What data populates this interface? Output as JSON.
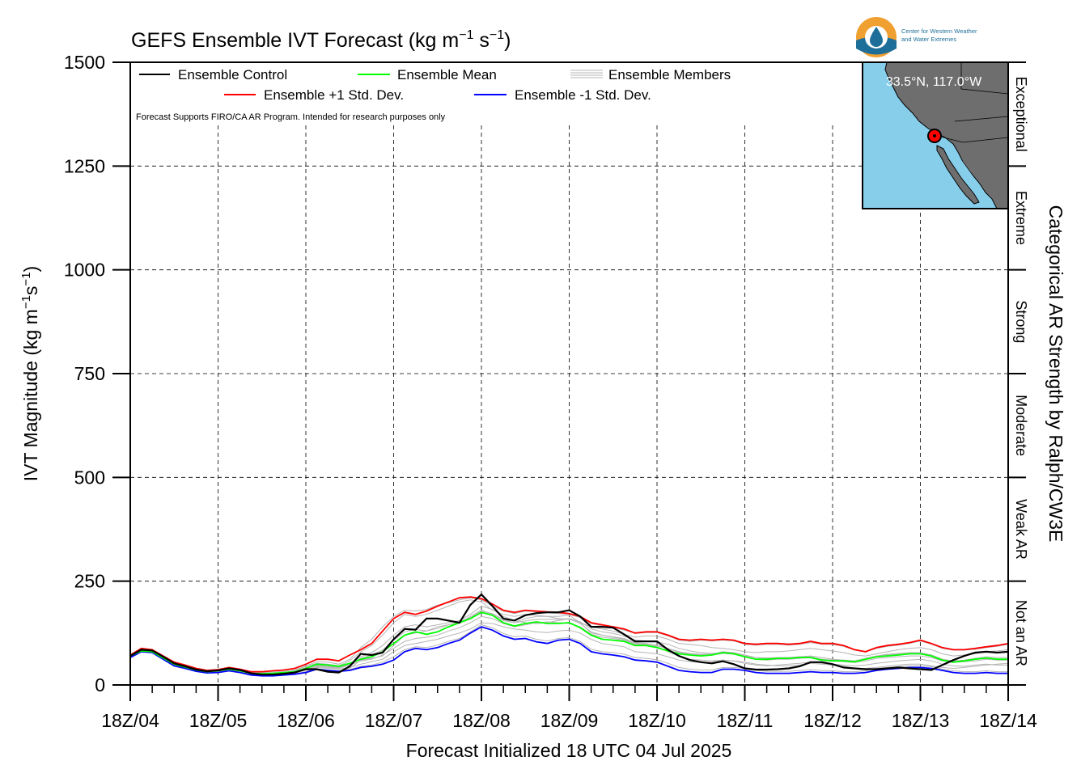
{
  "chart_data": {
    "type": "line",
    "title": "GEFS Ensemble IVT Forecast (kg m⁻¹ s⁻¹)",
    "title_parts": {
      "main": "GEFS Ensemble IVT Forecast (kg m",
      "exp1": "−1",
      "mid": " s",
      "exp2": "−1",
      "end": ")"
    },
    "ylabel_parts": {
      "main": "IVT Magnitude (kg m",
      "exp1": "−1",
      "mid": "s",
      "exp2": "−1",
      "end": ")"
    },
    "xlabel": "Forecast Initialized 18 UTC 04 Jul 2025",
    "right_label": "Categorical AR Strength by Ralph/CW3E",
    "ylim": [
      0,
      1500
    ],
    "yticks": [
      0,
      250,
      500,
      750,
      1000,
      1250,
      1500
    ],
    "ytick_labels": [
      "0",
      "250",
      "500",
      "750",
      "1000",
      "1250",
      "1500"
    ],
    "xlim": [
      0,
      10
    ],
    "xtick_labels": [
      "18Z/04",
      "18Z/05",
      "18Z/06",
      "18Z/07",
      "18Z/08",
      "18Z/09",
      "18Z/10",
      "18Z/11",
      "18Z/12",
      "18Z/13",
      "18Z/14"
    ],
    "grid": true,
    "legend_placement": "top-left",
    "categories": [
      {
        "label": "Not an AR",
        "lo": 0,
        "hi": 250
      },
      {
        "label": "Weak AR",
        "lo": 250,
        "hi": 500
      },
      {
        "label": "Moderate",
        "lo": 500,
        "hi": 750
      },
      {
        "label": "Strong",
        "lo": 750,
        "hi": 1000
      },
      {
        "label": "Extreme",
        "lo": 1000,
        "hi": 1250
      },
      {
        "label": "Exceptional",
        "lo": 1250,
        "hi": 1500
      }
    ],
    "x": [
      0,
      0.125,
      0.25,
      0.375,
      0.5,
      0.625,
      0.75,
      0.875,
      1,
      1.125,
      1.25,
      1.375,
      1.5,
      1.625,
      1.75,
      1.875,
      2,
      2.125,
      2.25,
      2.375,
      2.5,
      2.625,
      2.75,
      2.875,
      3,
      3.125,
      3.25,
      3.375,
      3.5,
      3.625,
      3.75,
      3.875,
      4,
      4.125,
      4.25,
      4.375,
      4.5,
      4.625,
      4.75,
      4.875,
      5,
      5.125,
      5.25,
      5.375,
      5.5,
      5.625,
      5.75,
      5.875,
      6,
      6.125,
      6.25,
      6.375,
      6.5,
      6.625,
      6.75,
      6.875,
      7,
      7.125,
      7.25,
      7.375,
      7.5,
      7.625,
      7.75,
      7.875,
      8,
      8.125,
      8.25,
      8.375,
      8.5,
      8.625,
      8.75,
      8.875,
      9,
      9.125,
      9.25,
      9.375,
      9.5,
      9.625,
      9.75,
      9.875,
      10
    ],
    "series": [
      {
        "name": "Ensemble Control",
        "color": "#000000",
        "values": [
          70,
          85,
          83,
          68,
          52,
          45,
          37,
          33,
          35,
          40,
          36,
          28,
          25,
          25,
          27,
          30,
          38,
          38,
          32,
          30,
          45,
          75,
          72,
          78,
          110,
          135,
          133,
          160,
          160,
          155,
          150,
          193,
          218,
          190,
          160,
          155,
          168,
          173,
          175,
          175,
          180,
          165,
          140,
          140,
          138,
          122,
          105,
          105,
          105,
          85,
          70,
          60,
          55,
          52,
          57,
          50,
          40,
          37,
          37,
          38,
          40,
          45,
          55,
          55,
          50,
          42,
          40,
          38,
          38,
          40,
          42,
          40,
          38,
          36,
          48,
          60,
          70,
          78,
          80,
          78,
          80
        ]
      },
      {
        "name": "Ensemble Mean",
        "color": "#00ff00",
        "values": [
          70,
          82,
          80,
          65,
          50,
          43,
          36,
          32,
          34,
          38,
          34,
          28,
          27,
          28,
          30,
          32,
          40,
          50,
          48,
          45,
          52,
          62,
          68,
          80,
          100,
          120,
          128,
          122,
          128,
          140,
          150,
          160,
          175,
          168,
          150,
          142,
          148,
          152,
          148,
          148,
          150,
          138,
          120,
          110,
          108,
          105,
          95,
          95,
          90,
          82,
          75,
          72,
          70,
          72,
          78,
          75,
          68,
          62,
          62,
          64,
          64,
          66,
          66,
          60,
          58,
          58,
          56,
          62,
          68,
          70,
          72,
          75,
          75,
          70,
          60,
          55,
          58,
          62,
          65,
          62,
          62
        ]
      },
      {
        "name": "Ensemble +1 Std. Dev.",
        "color": "#ff0000",
        "values": [
          72,
          88,
          85,
          70,
          55,
          48,
          40,
          35,
          37,
          42,
          38,
          32,
          32,
          34,
          36,
          40,
          50,
          62,
          62,
          58,
          72,
          85,
          100,
          130,
          160,
          175,
          170,
          178,
          190,
          200,
          210,
          212,
          208,
          195,
          180,
          175,
          180,
          178,
          176,
          175,
          172,
          165,
          150,
          145,
          140,
          135,
          125,
          128,
          128,
          120,
          110,
          108,
          110,
          108,
          110,
          108,
          100,
          98,
          100,
          100,
          98,
          100,
          105,
          100,
          100,
          95,
          85,
          80,
          90,
          95,
          98,
          102,
          108,
          100,
          90,
          85,
          85,
          88,
          92,
          95,
          100
        ]
      },
      {
        "name": "Ensemble -1 Std. Dev.",
        "color": "#0000ff",
        "values": [
          66,
          80,
          78,
          62,
          46,
          40,
          33,
          29,
          30,
          34,
          30,
          24,
          22,
          22,
          24,
          26,
          30,
          38,
          35,
          33,
          35,
          42,
          45,
          50,
          60,
          80,
          88,
          85,
          90,
          100,
          108,
          125,
          140,
          132,
          118,
          110,
          112,
          104,
          100,
          108,
          110,
          100,
          80,
          75,
          72,
          68,
          60,
          58,
          55,
          45,
          35,
          32,
          30,
          30,
          38,
          38,
          35,
          30,
          28,
          28,
          28,
          30,
          32,
          30,
          30,
          28,
          28,
          30,
          35,
          38,
          40,
          42,
          42,
          40,
          35,
          30,
          28,
          28,
          30,
          28,
          28
        ]
      }
    ],
    "members_label": "Ensemble Members",
    "member_color": "#b4b4b4",
    "members": [
      [
        70,
        84,
        82,
        67,
        51,
        44,
        36,
        32,
        34,
        39,
        35,
        27,
        24,
        24,
        26,
        29,
        36,
        36,
        31,
        29,
        40,
        60,
        64,
        70,
        95,
        120,
        125,
        130,
        140,
        145,
        150,
        165,
        180,
        170,
        155,
        150,
        160,
        165,
        165,
        165,
        168,
        150,
        125,
        120,
        115,
        110,
        100,
        98,
        92,
        80,
        70,
        62,
        60,
        58,
        60,
        58,
        55,
        50,
        48,
        46,
        46,
        48,
        52,
        50,
        48,
        45,
        40,
        40,
        42,
        45,
        48,
        50,
        50,
        46,
        42,
        40,
        42,
        45,
        48,
        50,
        52
      ],
      [
        71,
        86,
        84,
        69,
        53,
        46,
        38,
        34,
        36,
        41,
        37,
        30,
        28,
        28,
        30,
        34,
        45,
        52,
        50,
        46,
        58,
        80,
        95,
        120,
        150,
        170,
        165,
        170,
        180,
        190,
        200,
        205,
        200,
        180,
        170,
        165,
        170,
        168,
        165,
        160,
        158,
        150,
        140,
        135,
        130,
        122,
        115,
        118,
        118,
        110,
        100,
        98,
        95,
        90,
        88,
        85,
        80,
        78,
        80,
        80,
        82,
        85,
        88,
        85,
        82,
        78,
        72,
        70,
        75,
        80,
        85,
        88,
        90,
        85,
        75,
        70,
        72,
        75,
        80,
        82,
        85
      ],
      [
        69,
        82,
        80,
        66,
        50,
        43,
        35,
        31,
        32,
        36,
        33,
        26,
        24,
        24,
        25,
        27,
        32,
        42,
        40,
        38,
        42,
        50,
        56,
        62,
        80,
        95,
        100,
        105,
        110,
        118,
        125,
        135,
        150,
        148,
        140,
        135,
        132,
        128,
        126,
        130,
        132,
        125,
        110,
        100,
        96,
        92,
        80,
        78,
        75,
        68,
        60,
        56,
        54,
        55,
        60,
        58,
        52,
        48,
        46,
        48,
        50,
        52,
        55,
        52,
        50,
        48,
        46,
        48,
        52,
        55,
        58,
        60,
        62,
        58,
        50,
        46,
        45,
        48,
        50,
        48,
        48
      ],
      [
        70,
        85,
        83,
        68,
        52,
        45,
        37,
        33,
        35,
        40,
        36,
        29,
        27,
        28,
        30,
        32,
        42,
        48,
        46,
        42,
        50,
        68,
        78,
        95,
        120,
        140,
        145,
        140,
        145,
        150,
        155,
        170,
        190,
        182,
        165,
        155,
        150,
        148,
        150,
        155,
        160,
        152,
        135,
        128,
        124,
        118,
        108,
        106,
        104,
        98,
        88,
        82,
        78,
        76,
        78,
        76,
        70,
        66,
        64,
        64,
        66,
        68,
        70,
        66,
        62,
        60,
        58,
        62,
        70,
        74,
        76,
        78,
        78,
        72,
        62,
        58,
        60,
        64,
        68,
        66,
        66
      ],
      [
        70,
        83,
        81,
        66,
        50,
        44,
        36,
        32,
        33,
        38,
        34,
        27,
        25,
        25,
        27,
        29,
        36,
        44,
        42,
        40,
        48,
        58,
        62,
        72,
        88,
        105,
        112,
        115,
        120,
        130,
        138,
        150,
        165,
        160,
        148,
        140,
        145,
        150,
        152,
        150,
        148,
        140,
        122,
        115,
        112,
        108,
        98,
        96,
        94,
        88,
        80,
        76,
        74,
        74,
        80,
        78,
        72,
        66,
        65,
        66,
        66,
        68,
        68,
        62,
        60,
        60,
        58,
        64,
        70,
        72,
        74,
        76,
        76,
        72,
        62,
        56,
        58,
        62,
        64,
        62,
        62
      ],
      [
        72,
        87,
        85,
        70,
        54,
        47,
        39,
        35,
        37,
        42,
        38,
        31,
        30,
        31,
        33,
        36,
        46,
        56,
        55,
        50,
        62,
        90,
        110,
        140,
        165,
        180,
        178,
        182,
        192,
        198,
        205,
        210,
        205,
        190,
        178,
        172,
        178,
        176,
        174,
        172,
        170,
        162,
        148,
        142,
        138,
        132,
        124,
        126,
        126,
        118,
        108,
        105,
        108,
        106,
        108,
        106,
        98,
        96,
        98,
        98,
        96,
        98,
        102,
        98,
        98,
        93,
        84,
        80,
        88,
        93,
        96,
        100,
        106,
        98,
        88,
        84,
        84,
        86,
        90,
        93,
        98
      ],
      [
        68,
        81,
        79,
        64,
        48,
        42,
        34,
        30,
        31,
        35,
        32,
        25,
        23,
        23,
        24,
        26,
        31,
        38,
        36,
        34,
        37,
        45,
        48,
        55,
        68,
        85,
        92,
        90,
        96,
        105,
        112,
        128,
        145,
        138,
        124,
        116,
        118,
        110,
        106,
        112,
        114,
        105,
        86,
        80,
        78,
        74,
        66,
        64,
        61,
        52,
        42,
        38,
        36,
        36,
        42,
        42,
        40,
        35,
        33,
        33,
        33,
        35,
        37,
        35,
        34,
        32,
        32,
        34,
        40,
        42,
        44,
        46,
        46,
        44,
        38,
        34,
        32,
        32,
        34,
        32,
        32
      ],
      [
        70,
        84,
        82,
        67,
        51,
        44,
        36,
        32,
        34,
        39,
        35,
        28,
        26,
        26,
        28,
        31,
        39,
        46,
        44,
        41,
        48,
        64,
        72,
        84,
        108,
        128,
        134,
        130,
        136,
        145,
        152,
        162,
        178,
        172,
        158,
        150,
        154,
        158,
        158,
        158,
        160,
        148,
        128,
        120,
        116,
        112,
        102,
        100,
        96,
        88,
        78,
        74,
        72,
        72,
        76,
        74,
        68,
        62,
        60,
        62,
        62,
        64,
        66,
        62,
        58,
        56,
        54,
        58,
        64,
        66,
        68,
        70,
        70,
        66,
        58,
        54,
        56,
        58,
        62,
        60,
        60
      ]
    ]
  },
  "disclaimer": "Forecast Supports FIRO/CA AR Program. Intended for research purposes only",
  "inset_map": {
    "coord_label": "33.5°N, 117.0°W",
    "ocean_color": "#87ceeb",
    "land_color": "#6e6e6e",
    "marker_color": "#ff0000",
    "marker_icon": "location-dot-icon"
  },
  "logo": {
    "line1": "Center for Western Weather",
    "line2": "and Water Extremes",
    "ring_color": "#f0a030",
    "drop_color": "#1e6e9a"
  }
}
